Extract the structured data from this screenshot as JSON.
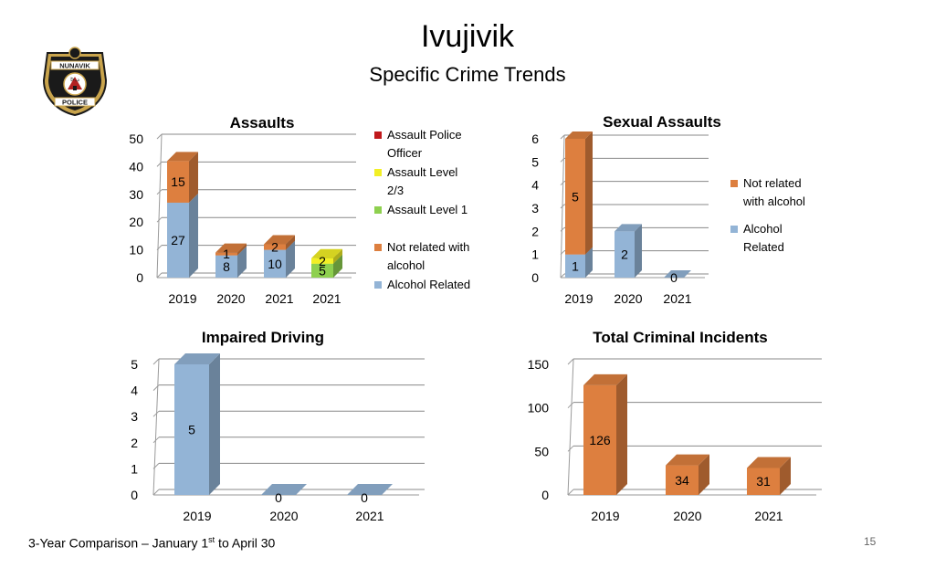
{
  "slide": {
    "title": "Ivujivik",
    "subtitle": "Specific Crime Trends",
    "footer_text": "3-Year Comparison – January 1",
    "footer_sup": "st",
    "footer_end": " to April 30",
    "page_number": "15",
    "logo": {
      "top_text": "NUNAVIK",
      "bottom_text": "POLICE",
      "glyph": "ᐅᓗ",
      "colors": {
        "shield": "#1a1a1a",
        "gold": "#c9a44c",
        "red": "#b22222"
      }
    }
  },
  "colors": {
    "alcohol": "#93b4d6",
    "not_alcohol": "#dd7f3f",
    "level1": "#8ed04f",
    "level23": "#f2ef25",
    "police": "#c0191c",
    "axis": "#9a9a9a",
    "grid": "#888888"
  },
  "chart_data": [
    {
      "id": "assaults",
      "type": "bar",
      "stacked": true,
      "title": "Assaults",
      "categories": [
        "2019",
        "2020",
        "2021",
        "2021"
      ],
      "ylim": [
        0,
        50
      ],
      "yticks": [
        "0",
        "10",
        "20",
        "30",
        "40",
        "50"
      ],
      "series": [
        {
          "name": "Alcohol Related",
          "values": [
            27,
            8,
            10,
            0
          ]
        },
        {
          "name": "Not related with alcohol",
          "values": [
            15,
            1,
            2,
            0
          ]
        },
        {
          "name": "Assault Level 1",
          "values": [
            0,
            0,
            0,
            5
          ]
        },
        {
          "name": "Assault Level 2/3",
          "values": [
            0,
            0,
            0,
            2
          ]
        },
        {
          "name": "Assault Police Officer",
          "values": [
            0,
            0,
            0,
            0
          ]
        }
      ],
      "legend": [
        "Assault Police Officer",
        "Assault Level 2/3",
        "Assault Level 1",
        "Not related with alcohol",
        "Alcohol Related"
      ]
    },
    {
      "id": "sexual",
      "type": "bar",
      "stacked": true,
      "title": "Sexual Assaults",
      "categories": [
        "2019",
        "2020",
        "2021"
      ],
      "ylim": [
        0,
        6
      ],
      "yticks": [
        "0",
        "1",
        "2",
        "3",
        "4",
        "5",
        "6"
      ],
      "series": [
        {
          "name": "Alcohol Related",
          "values": [
            1,
            2,
            0
          ]
        },
        {
          "name": "Not related with alcohol",
          "values": [
            5,
            0,
            0
          ]
        }
      ],
      "legend": [
        "Not related with alcohol",
        "Alcohol Related"
      ]
    },
    {
      "id": "impaired",
      "type": "bar",
      "title": "Impaired Driving",
      "categories": [
        "2019",
        "2020",
        "2021"
      ],
      "ylim": [
        0,
        5
      ],
      "yticks": [
        "0",
        "1",
        "2",
        "3",
        "4",
        "5"
      ],
      "values": [
        5,
        0,
        0
      ]
    },
    {
      "id": "total",
      "type": "bar",
      "title": "Total Criminal Incidents",
      "categories": [
        "2019",
        "2020",
        "2021"
      ],
      "ylim": [
        0,
        150
      ],
      "yticks": [
        "0",
        "50",
        "100",
        "150"
      ],
      "values": [
        126,
        34,
        31
      ]
    }
  ]
}
